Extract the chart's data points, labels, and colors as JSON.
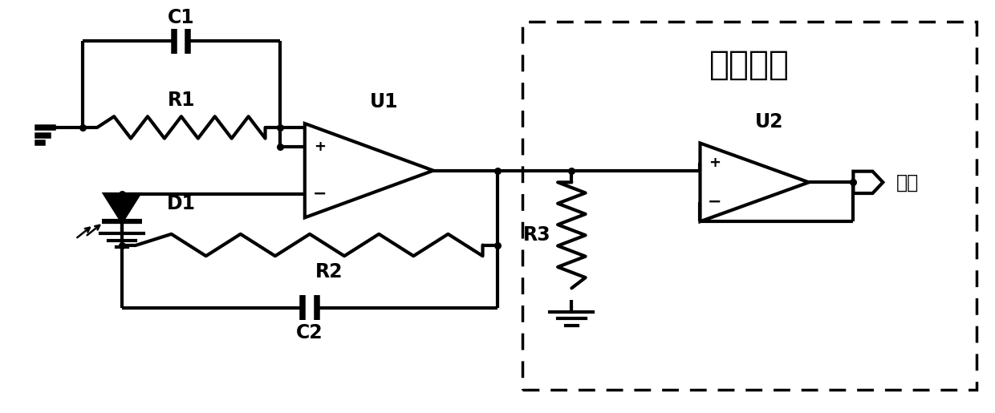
{
  "bg_color": "#ffffff",
  "line_color": "#000000",
  "lw": 3.0,
  "fig_width": 12.4,
  "fig_height": 5.15,
  "dpi": 100,
  "title_text": "运放隔离",
  "title_fontsize": 30,
  "label_fontsize": 17,
  "plus_minus_fontsize": 13,
  "components": {
    "C1_label": "C1",
    "R1_label": "R1",
    "U1_label": "U1",
    "D1_label": "D1",
    "R2_label": "R2",
    "C2_label": "C2",
    "R3_label": "R3",
    "U2_label": "U2",
    "output_label": "输出"
  },
  "xlim": [
    0,
    100
  ],
  "ylim": [
    0,
    51.5
  ]
}
